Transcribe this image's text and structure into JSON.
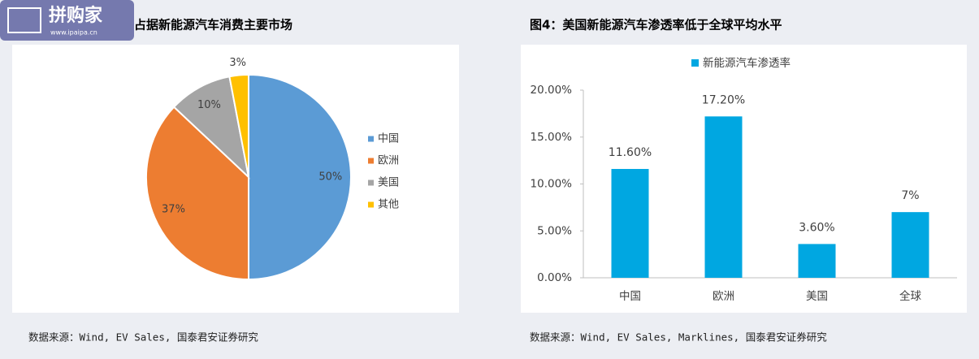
{
  "logo": {
    "text": "拼购家",
    "url": "www.ipaipa.cn"
  },
  "chart_data": [
    {
      "type": "pie",
      "title": "占据新能源汽车消费主要市场",
      "categories": [
        "中国",
        "欧洲",
        "美国",
        "其他"
      ],
      "values": [
        50,
        37,
        10,
        3
      ],
      "value_labels": [
        "50%",
        "37%",
        "10%",
        "3%"
      ],
      "colors": [
        "#5b9bd5",
        "#ed7d31",
        "#a5a5a5",
        "#ffc000"
      ],
      "legend": "right",
      "source": "数据来源：Wind, EV Sales, 国泰君安证券研究"
    },
    {
      "type": "bar",
      "title": "图4：美国新能源汽车渗透率低于全球平均水平",
      "categories": [
        "中国",
        "欧洲",
        "美国",
        "全球"
      ],
      "series": [
        {
          "name": "新能源汽车渗透率",
          "color": "#00a7e1",
          "values": [
            11.6,
            17.2,
            3.6,
            7
          ],
          "value_labels": [
            "11.60%",
            "17.20%",
            "3.60%",
            "7%"
          ]
        }
      ],
      "ylim": [
        0,
        20
      ],
      "yticks": [
        {
          "value": 0,
          "label": "0.00%"
        },
        {
          "value": 5,
          "label": "5.00%"
        },
        {
          "value": 10,
          "label": "10.00%"
        },
        {
          "value": 15,
          "label": "15.00%"
        },
        {
          "value": 20,
          "label": "20.00%"
        }
      ],
      "grid": false,
      "legend": "top",
      "source": "数据来源：Wind, EV Sales, Marklines, 国泰君安证券研究"
    }
  ]
}
